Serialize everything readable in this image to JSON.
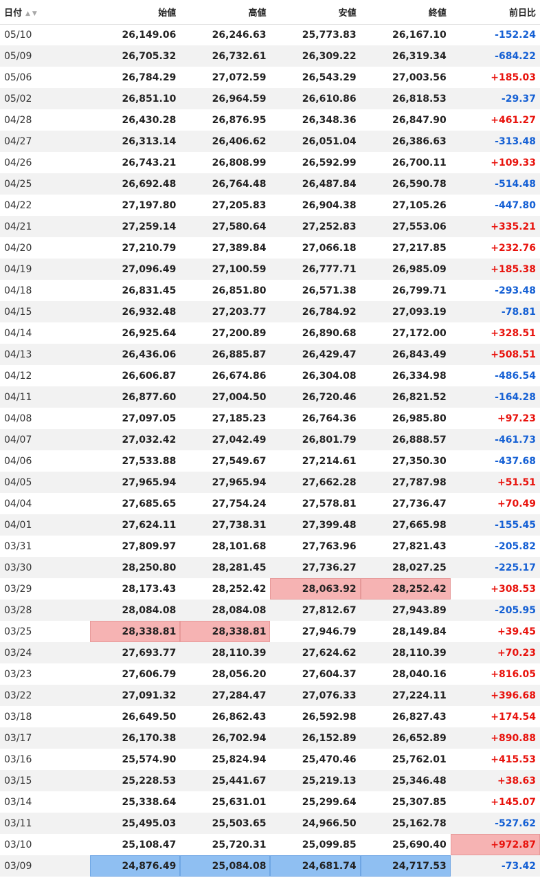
{
  "table": {
    "headers": {
      "date": "日付",
      "sort_icons": "▲▼",
      "open": "始値",
      "high": "高値",
      "low": "安値",
      "close": "終値",
      "change": "前日比"
    },
    "colors": {
      "up": "#e8120c",
      "down": "#1560d4",
      "highlight_red": "#f6b3b3",
      "highlight_blue": "#8fbff2"
    },
    "rows": [
      {
        "date": "05/10",
        "open": "26,149.06",
        "high": "26,246.63",
        "low": "25,773.83",
        "close": "26,167.10",
        "change": "-152.24"
      },
      {
        "date": "05/09",
        "open": "26,705.32",
        "high": "26,732.61",
        "low": "26,309.22",
        "close": "26,319.34",
        "change": "-684.22"
      },
      {
        "date": "05/06",
        "open": "26,784.29",
        "high": "27,072.59",
        "low": "26,543.29",
        "close": "27,003.56",
        "change": "+185.03"
      },
      {
        "date": "05/02",
        "open": "26,851.10",
        "high": "26,964.59",
        "low": "26,610.86",
        "close": "26,818.53",
        "change": "-29.37"
      },
      {
        "date": "04/28",
        "open": "26,430.28",
        "high": "26,876.95",
        "low": "26,348.36",
        "close": "26,847.90",
        "change": "+461.27"
      },
      {
        "date": "04/27",
        "open": "26,313.14",
        "high": "26,406.62",
        "low": "26,051.04",
        "close": "26,386.63",
        "change": "-313.48"
      },
      {
        "date": "04/26",
        "open": "26,743.21",
        "high": "26,808.99",
        "low": "26,592.99",
        "close": "26,700.11",
        "change": "+109.33"
      },
      {
        "date": "04/25",
        "open": "26,692.48",
        "high": "26,764.48",
        "low": "26,487.84",
        "close": "26,590.78",
        "change": "-514.48"
      },
      {
        "date": "04/22",
        "open": "27,197.80",
        "high": "27,205.83",
        "low": "26,904.38",
        "close": "27,105.26",
        "change": "-447.80"
      },
      {
        "date": "04/21",
        "open": "27,259.14",
        "high": "27,580.64",
        "low": "27,252.83",
        "close": "27,553.06",
        "change": "+335.21"
      },
      {
        "date": "04/20",
        "open": "27,210.79",
        "high": "27,389.84",
        "low": "27,066.18",
        "close": "27,217.85",
        "change": "+232.76"
      },
      {
        "date": "04/19",
        "open": "27,096.49",
        "high": "27,100.59",
        "low": "26,777.71",
        "close": "26,985.09",
        "change": "+185.38"
      },
      {
        "date": "04/18",
        "open": "26,831.45",
        "high": "26,851.80",
        "low": "26,571.38",
        "close": "26,799.71",
        "change": "-293.48"
      },
      {
        "date": "04/15",
        "open": "26,932.48",
        "high": "27,203.77",
        "low": "26,784.92",
        "close": "27,093.19",
        "change": "-78.81"
      },
      {
        "date": "04/14",
        "open": "26,925.64",
        "high": "27,200.89",
        "low": "26,890.68",
        "close": "27,172.00",
        "change": "+328.51"
      },
      {
        "date": "04/13",
        "open": "26,436.06",
        "high": "26,885.87",
        "low": "26,429.47",
        "close": "26,843.49",
        "change": "+508.51"
      },
      {
        "date": "04/12",
        "open": "26,606.87",
        "high": "26,674.86",
        "low": "26,304.08",
        "close": "26,334.98",
        "change": "-486.54"
      },
      {
        "date": "04/11",
        "open": "26,877.60",
        "high": "27,004.50",
        "low": "26,720.46",
        "close": "26,821.52",
        "change": "-164.28"
      },
      {
        "date": "04/08",
        "open": "27,097.05",
        "high": "27,185.23",
        "low": "26,764.36",
        "close": "26,985.80",
        "change": "+97.23"
      },
      {
        "date": "04/07",
        "open": "27,032.42",
        "high": "27,042.49",
        "low": "26,801.79",
        "close": "26,888.57",
        "change": "-461.73"
      },
      {
        "date": "04/06",
        "open": "27,533.88",
        "high": "27,549.67",
        "low": "27,214.61",
        "close": "27,350.30",
        "change": "-437.68"
      },
      {
        "date": "04/05",
        "open": "27,965.94",
        "high": "27,965.94",
        "low": "27,662.28",
        "close": "27,787.98",
        "change": "+51.51"
      },
      {
        "date": "04/04",
        "open": "27,685.65",
        "high": "27,754.24",
        "low": "27,578.81",
        "close": "27,736.47",
        "change": "+70.49"
      },
      {
        "date": "04/01",
        "open": "27,624.11",
        "high": "27,738.31",
        "low": "27,399.48",
        "close": "27,665.98",
        "change": "-155.45"
      },
      {
        "date": "03/31",
        "open": "27,809.97",
        "high": "28,101.68",
        "low": "27,763.96",
        "close": "27,821.43",
        "change": "-205.82"
      },
      {
        "date": "03/30",
        "open": "28,250.80",
        "high": "28,281.45",
        "low": "27,736.27",
        "close": "28,027.25",
        "change": "-225.17"
      },
      {
        "date": "03/29",
        "open": "28,173.43",
        "high": "28,252.42",
        "low": "28,063.92",
        "close": "28,252.42",
        "change": "+308.53"
      },
      {
        "date": "03/28",
        "open": "28,084.08",
        "high": "28,084.08",
        "low": "27,812.67",
        "close": "27,943.89",
        "change": "-205.95"
      },
      {
        "date": "03/25",
        "open": "28,338.81",
        "high": "28,338.81",
        "low": "27,946.79",
        "close": "28,149.84",
        "change": "+39.45"
      },
      {
        "date": "03/24",
        "open": "27,693.77",
        "high": "28,110.39",
        "low": "27,624.62",
        "close": "28,110.39",
        "change": "+70.23"
      },
      {
        "date": "03/23",
        "open": "27,606.79",
        "high": "28,056.20",
        "low": "27,604.37",
        "close": "28,040.16",
        "change": "+816.05"
      },
      {
        "date": "03/22",
        "open": "27,091.32",
        "high": "27,284.47",
        "low": "27,076.33",
        "close": "27,224.11",
        "change": "+396.68"
      },
      {
        "date": "03/18",
        "open": "26,649.50",
        "high": "26,862.43",
        "low": "26,592.98",
        "close": "26,827.43",
        "change": "+174.54"
      },
      {
        "date": "03/17",
        "open": "26,170.38",
        "high": "26,702.94",
        "low": "26,152.89",
        "close": "26,652.89",
        "change": "+890.88"
      },
      {
        "date": "03/16",
        "open": "25,574.90",
        "high": "25,824.94",
        "low": "25,470.46",
        "close": "25,762.01",
        "change": "+415.53"
      },
      {
        "date": "03/15",
        "open": "25,228.53",
        "high": "25,441.67",
        "low": "25,219.13",
        "close": "25,346.48",
        "change": "+38.63"
      },
      {
        "date": "03/14",
        "open": "25,338.64",
        "high": "25,631.01",
        "low": "25,299.64",
        "close": "25,307.85",
        "change": "+145.07"
      },
      {
        "date": "03/11",
        "open": "25,495.03",
        "high": "25,503.65",
        "low": "24,966.50",
        "close": "25,162.78",
        "change": "-527.62"
      },
      {
        "date": "03/10",
        "open": "25,108.47",
        "high": "25,720.31",
        "low": "25,099.85",
        "close": "25,690.40",
        "change": "+972.87"
      },
      {
        "date": "03/09",
        "open": "24,876.49",
        "high": "25,084.08",
        "low": "24,681.74",
        "close": "24,717.53",
        "change": "-73.42"
      }
    ],
    "highlights": [
      {
        "row": 26,
        "cols": [
          "low",
          "close"
        ],
        "style": "red"
      },
      {
        "row": 28,
        "cols": [
          "open",
          "high"
        ],
        "style": "red"
      },
      {
        "row": 38,
        "cols": [
          "change"
        ],
        "style": "red"
      },
      {
        "row": 39,
        "cols": [
          "open",
          "high",
          "low",
          "close"
        ],
        "style": "blue"
      }
    ]
  }
}
